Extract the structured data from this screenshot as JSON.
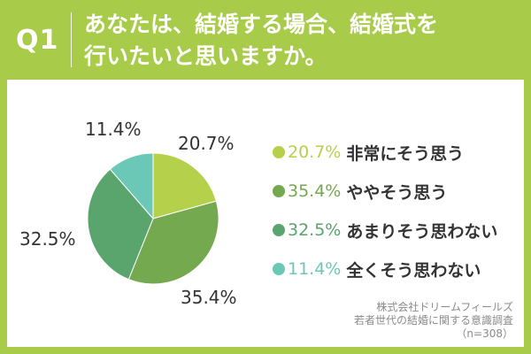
{
  "header": {
    "q_label": "Q1",
    "question_line1": "あなたは、結婚する場合、結婚式を",
    "question_line2": "行いたいと思いますか。"
  },
  "chart_data": {
    "type": "pie",
    "slices": [
      {
        "label": "非常にそう思う",
        "value": 20.7,
        "display": "20.7%",
        "color": "#b5d14b"
      },
      {
        "label": "ややそう思う",
        "value": 35.4,
        "display": "35.4%",
        "color": "#74a94f"
      },
      {
        "label": "あまりそう思わない",
        "value": 32.5,
        "display": "32.5%",
        "color": "#5aa46e"
      },
      {
        "label": "全くそう思わない",
        "value": 11.4,
        "display": "11.4%",
        "color": "#6cc8b6"
      }
    ]
  },
  "source": {
    "line1": "株式会社ドリームフィールズ",
    "line2": "若者世代の結婚に関する意識調査",
    "line3": "（n=308）"
  },
  "colors": {
    "frame": "#a8cb4a",
    "text": "#333333"
  }
}
